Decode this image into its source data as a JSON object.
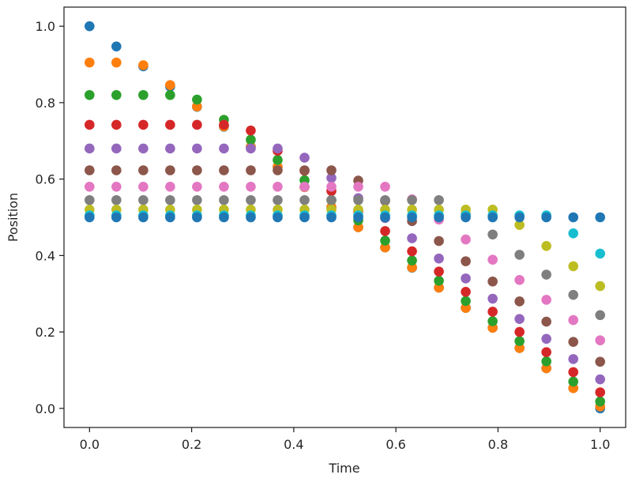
{
  "chart_data": {
    "type": "scatter",
    "title": "",
    "xlabel": "Time",
    "ylabel": "Position",
    "xlim": [
      -0.05,
      1.05
    ],
    "ylim": [
      -0.05,
      1.05
    ],
    "xticks": [
      0.0,
      0.2,
      0.4,
      0.6,
      0.8,
      1.0
    ],
    "yticks": [
      0.0,
      0.2,
      0.4,
      0.6,
      0.8,
      1.0
    ],
    "xtick_labels": [
      "0.0",
      "0.2",
      "0.4",
      "0.6",
      "0.8",
      "1.0"
    ],
    "ytick_labels": [
      "0.0",
      "0.2",
      "0.4",
      "0.6",
      "0.8",
      "1.0"
    ],
    "grid": false,
    "legend": "none",
    "x": [
      0.0,
      0.0526,
      0.1053,
      0.1579,
      0.2105,
      0.2632,
      0.3158,
      0.3684,
      0.4211,
      0.4737,
      0.5263,
      0.5789,
      0.6316,
      0.6842,
      0.7368,
      0.7895,
      0.8421,
      0.8947,
      0.9474,
      1.0
    ],
    "series": [
      {
        "color": "#1f77b4",
        "values": [
          1.0,
          0.947,
          0.895,
          0.842,
          0.789,
          0.737,
          0.684,
          0.632,
          0.579,
          0.526,
          0.474,
          0.421,
          0.368,
          0.316,
          0.263,
          0.211,
          0.158,
          0.105,
          0.053,
          0.0
        ]
      },
      {
        "color": "#ff7f0e",
        "values": [
          0.905,
          0.905,
          0.898,
          0.846,
          0.79,
          0.738,
          0.685,
          0.632,
          0.579,
          0.527,
          0.474,
          0.421,
          0.369,
          0.316,
          0.263,
          0.211,
          0.158,
          0.105,
          0.053,
          0.005
        ]
      },
      {
        "color": "#2ca02c",
        "values": [
          0.82,
          0.82,
          0.82,
          0.82,
          0.808,
          0.755,
          0.703,
          0.65,
          0.597,
          0.545,
          0.492,
          0.439,
          0.387,
          0.334,
          0.281,
          0.228,
          0.176,
          0.123,
          0.07,
          0.018
        ]
      },
      {
        "color": "#d62728",
        "values": [
          0.742,
          0.742,
          0.742,
          0.742,
          0.742,
          0.742,
          0.727,
          0.674,
          0.622,
          0.569,
          0.516,
          0.464,
          0.411,
          0.358,
          0.305,
          0.253,
          0.2,
          0.147,
          0.095,
          0.042
        ]
      },
      {
        "color": "#9467bd",
        "values": [
          0.68,
          0.68,
          0.68,
          0.68,
          0.68,
          0.68,
          0.68,
          0.68,
          0.656,
          0.603,
          0.55,
          0.498,
          0.445,
          0.392,
          0.34,
          0.287,
          0.234,
          0.182,
          0.129,
          0.076
        ]
      },
      {
        "color": "#8c564b",
        "values": [
          0.623,
          0.623,
          0.623,
          0.623,
          0.623,
          0.623,
          0.623,
          0.623,
          0.623,
          0.623,
          0.596,
          0.543,
          0.49,
          0.438,
          0.385,
          0.332,
          0.28,
          0.227,
          0.174,
          0.122
        ]
      },
      {
        "color": "#e377c2",
        "values": [
          0.58,
          0.58,
          0.58,
          0.58,
          0.58,
          0.58,
          0.58,
          0.58,
          0.58,
          0.58,
          0.58,
          0.58,
          0.547,
          0.494,
          0.442,
          0.389,
          0.336,
          0.284,
          0.231,
          0.178
        ]
      },
      {
        "color": "#7f7f7f",
        "values": [
          0.545,
          0.545,
          0.545,
          0.545,
          0.545,
          0.545,
          0.545,
          0.545,
          0.545,
          0.545,
          0.545,
          0.545,
          0.545,
          0.545,
          0.508,
          0.455,
          0.402,
          0.35,
          0.297,
          0.244
        ]
      },
      {
        "color": "#bcbd22",
        "values": [
          0.52,
          0.52,
          0.52,
          0.52,
          0.52,
          0.52,
          0.52,
          0.52,
          0.52,
          0.52,
          0.52,
          0.52,
          0.52,
          0.52,
          0.52,
          0.52,
          0.48,
          0.425,
          0.372,
          0.32
        ]
      },
      {
        "color": "#17becf",
        "values": [
          0.505,
          0.505,
          0.505,
          0.505,
          0.505,
          0.505,
          0.505,
          0.505,
          0.505,
          0.505,
          0.505,
          0.505,
          0.505,
          0.505,
          0.505,
          0.505,
          0.505,
          0.505,
          0.458,
          0.405
        ]
      },
      {
        "color": "#1f77b4",
        "values": [
          0.5,
          0.5,
          0.5,
          0.5,
          0.5,
          0.5,
          0.5,
          0.5,
          0.5,
          0.5,
          0.5,
          0.5,
          0.5,
          0.5,
          0.5,
          0.5,
          0.5,
          0.5,
          0.5,
          0.5
        ]
      }
    ]
  }
}
